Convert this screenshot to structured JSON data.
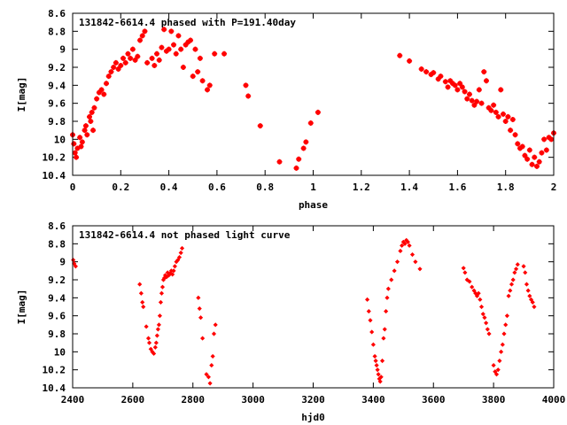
{
  "chart_data": [
    {
      "type": "scatter",
      "title": "131842-6614.4 phased with P=191.40day",
      "xlabel": "phase",
      "ylabel": "I[mag]",
      "xlim": [
        0,
        2
      ],
      "ylim": [
        10.4,
        8.6
      ],
      "y_inverted": true,
      "xticks": [
        "0",
        "0.2",
        "0.4",
        "0.6",
        "0.8",
        "1",
        "1.2",
        "1.4",
        "1.6",
        "1.8",
        "2"
      ],
      "yticks": [
        "8.6",
        "8.8",
        "9",
        "9.2",
        "9.4",
        "9.6",
        "9.8",
        "10",
        "10.2",
        "10.4"
      ],
      "marker": "plus",
      "series_color": "#ff0000",
      "points": [
        [
          0.0,
          9.95
        ],
        [
          0.005,
          10.05
        ],
        [
          0.01,
          10.15
        ],
        [
          0.015,
          10.2
        ],
        [
          0.02,
          10.1
        ],
        [
          0.03,
          9.98
        ],
        [
          0.035,
          10.08
        ],
        [
          0.04,
          10.03
        ],
        [
          0.05,
          9.9
        ],
        [
          0.055,
          9.85
        ],
        [
          0.06,
          9.95
        ],
        [
          0.07,
          9.75
        ],
        [
          0.075,
          9.8
        ],
        [
          0.08,
          9.7
        ],
        [
          0.085,
          9.9
        ],
        [
          0.09,
          9.65
        ],
        [
          0.1,
          9.55
        ],
        [
          0.11,
          9.48
        ],
        [
          0.12,
          9.45
        ],
        [
          0.13,
          9.5
        ],
        [
          0.14,
          9.38
        ],
        [
          0.15,
          9.3
        ],
        [
          0.16,
          9.25
        ],
        [
          0.17,
          9.2
        ],
        [
          0.18,
          9.15
        ],
        [
          0.19,
          9.22
        ],
        [
          0.2,
          9.18
        ],
        [
          0.21,
          9.1
        ],
        [
          0.22,
          9.15
        ],
        [
          0.23,
          9.05
        ],
        [
          0.24,
          9.1
        ],
        [
          0.25,
          9.0
        ],
        [
          0.26,
          9.12
        ],
        [
          0.27,
          9.08
        ],
        [
          0.28,
          8.9
        ],
        [
          0.29,
          8.85
        ],
        [
          0.3,
          8.8
        ],
        [
          0.31,
          9.15
        ],
        [
          0.33,
          9.1
        ],
        [
          0.34,
          9.18
        ],
        [
          0.35,
          9.05
        ],
        [
          0.36,
          9.12
        ],
        [
          0.37,
          8.98
        ],
        [
          0.38,
          8.78
        ],
        [
          0.39,
          9.02
        ],
        [
          0.4,
          9.0
        ],
        [
          0.41,
          8.8
        ],
        [
          0.42,
          8.95
        ],
        [
          0.43,
          9.05
        ],
        [
          0.44,
          8.85
        ],
        [
          0.45,
          9.0
        ],
        [
          0.46,
          9.2
        ],
        [
          0.47,
          8.95
        ],
        [
          0.48,
          8.92
        ],
        [
          0.49,
          8.9
        ],
        [
          0.5,
          9.3
        ],
        [
          0.51,
          9.0
        ],
        [
          0.52,
          9.25
        ],
        [
          0.53,
          9.1
        ],
        [
          0.54,
          9.35
        ],
        [
          0.56,
          9.45
        ],
        [
          0.57,
          9.4
        ],
        [
          0.59,
          9.05
        ],
        [
          0.63,
          9.05
        ],
        [
          0.72,
          9.4
        ],
        [
          0.73,
          9.52
        ],
        [
          0.78,
          9.85
        ],
        [
          0.86,
          10.25
        ],
        [
          0.93,
          10.32
        ],
        [
          0.94,
          10.22
        ],
        [
          0.96,
          10.1
        ],
        [
          0.97,
          10.03
        ],
        [
          0.99,
          9.82
        ],
        [
          1.02,
          9.7
        ],
        [
          1.36,
          9.07
        ],
        [
          1.4,
          9.13
        ],
        [
          1.45,
          9.22
        ],
        [
          1.47,
          9.25
        ],
        [
          1.49,
          9.28
        ],
        [
          1.5,
          9.26
        ],
        [
          1.52,
          9.33
        ],
        [
          1.53,
          9.3
        ],
        [
          1.55,
          9.36
        ],
        [
          1.56,
          9.42
        ],
        [
          1.57,
          9.35
        ],
        [
          1.58,
          9.38
        ],
        [
          1.59,
          9.4
        ],
        [
          1.6,
          9.45
        ],
        [
          1.61,
          9.38
        ],
        [
          1.62,
          9.42
        ],
        [
          1.63,
          9.47
        ],
        [
          1.64,
          9.55
        ],
        [
          1.65,
          9.5
        ],
        [
          1.66,
          9.57
        ],
        [
          1.67,
          9.62
        ],
        [
          1.68,
          9.58
        ],
        [
          1.69,
          9.45
        ],
        [
          1.7,
          9.6
        ],
        [
          1.71,
          9.25
        ],
        [
          1.72,
          9.35
        ],
        [
          1.73,
          9.65
        ],
        [
          1.74,
          9.68
        ],
        [
          1.75,
          9.62
        ],
        [
          1.76,
          9.7
        ],
        [
          1.77,
          9.75
        ],
        [
          1.78,
          9.45
        ],
        [
          1.79,
          9.72
        ],
        [
          1.8,
          9.8
        ],
        [
          1.81,
          9.75
        ],
        [
          1.82,
          9.9
        ],
        [
          1.83,
          9.78
        ],
        [
          1.84,
          9.95
        ],
        [
          1.85,
          10.05
        ],
        [
          1.86,
          10.1
        ],
        [
          1.87,
          10.08
        ],
        [
          1.88,
          10.18
        ],
        [
          1.89,
          10.22
        ],
        [
          1.9,
          10.12
        ],
        [
          1.91,
          10.28
        ],
        [
          1.92,
          10.2
        ],
        [
          1.93,
          10.3
        ],
        [
          1.94,
          10.25
        ],
        [
          1.95,
          10.15
        ],
        [
          1.96,
          10.0
        ],
        [
          1.97,
          10.12
        ],
        [
          1.98,
          9.98
        ],
        [
          1.99,
          10.0
        ],
        [
          2.0,
          9.93
        ]
      ]
    },
    {
      "type": "scatter",
      "title": "131842-6614.4 not phased light curve",
      "xlabel": "hjd0",
      "ylabel": "I[mag]",
      "xlim": [
        2400,
        4000
      ],
      "ylim": [
        10.4,
        8.6
      ],
      "y_inverted": true,
      "xticks": [
        "2400",
        "2600",
        "2800",
        "3000",
        "3200",
        "3400",
        "3600",
        "3800",
        "4000"
      ],
      "yticks": [
        "8.6",
        "8.8",
        "9",
        "9.2",
        "9.4",
        "9.6",
        "9.8",
        "10",
        "10.2",
        "10.4"
      ],
      "marker": "diamond",
      "series_color": "#ff0000",
      "points": [
        [
          2402,
          8.98
        ],
        [
          2405,
          9.02
        ],
        [
          2410,
          9.05
        ],
        [
          2623,
          9.25
        ],
        [
          2628,
          9.35
        ],
        [
          2632,
          9.45
        ],
        [
          2635,
          9.5
        ],
        [
          2645,
          9.72
        ],
        [
          2652,
          9.85
        ],
        [
          2655,
          9.9
        ],
        [
          2660,
          9.97
        ],
        [
          2665,
          10.0
        ],
        [
          2670,
          10.02
        ],
        [
          2675,
          9.95
        ],
        [
          2678,
          9.9
        ],
        [
          2681,
          9.82
        ],
        [
          2684,
          9.75
        ],
        [
          2687,
          9.7
        ],
        [
          2690,
          9.6
        ],
        [
          2693,
          9.45
        ],
        [
          2696,
          9.35
        ],
        [
          2699,
          9.28
        ],
        [
          2702,
          9.2
        ],
        [
          2705,
          9.18
        ],
        [
          2708,
          9.15
        ],
        [
          2712,
          9.17
        ],
        [
          2716,
          9.12
        ],
        [
          2720,
          9.15
        ],
        [
          2724,
          9.13
        ],
        [
          2728,
          9.1
        ],
        [
          2732,
          9.14
        ],
        [
          2736,
          9.1
        ],
        [
          2740,
          9.05
        ],
        [
          2745,
          9.0
        ],
        [
          2750,
          8.98
        ],
        [
          2755,
          8.95
        ],
        [
          2760,
          8.9
        ],
        [
          2764,
          8.85
        ],
        [
          2818,
          9.4
        ],
        [
          2822,
          9.52
        ],
        [
          2826,
          9.62
        ],
        [
          2832,
          9.85
        ],
        [
          2845,
          10.25
        ],
        [
          2852,
          10.28
        ],
        [
          2857,
          10.35
        ],
        [
          2862,
          10.15
        ],
        [
          2866,
          10.05
        ],
        [
          2870,
          9.8
        ],
        [
          2875,
          9.7
        ],
        [
          3380,
          9.42
        ],
        [
          3385,
          9.55
        ],
        [
          3390,
          9.65
        ],
        [
          3395,
          9.78
        ],
        [
          3400,
          9.92
        ],
        [
          3405,
          10.05
        ],
        [
          3408,
          10.1
        ],
        [
          3411,
          10.15
        ],
        [
          3414,
          10.2
        ],
        [
          3417,
          10.25
        ],
        [
          3420,
          10.3
        ],
        [
          3423,
          10.33
        ],
        [
          3426,
          10.28
        ],
        [
          3430,
          10.1
        ],
        [
          3434,
          9.85
        ],
        [
          3438,
          9.75
        ],
        [
          3442,
          9.55
        ],
        [
          3446,
          9.4
        ],
        [
          3450,
          9.3
        ],
        [
          3460,
          9.2
        ],
        [
          3470,
          9.1
        ],
        [
          3480,
          9.0
        ],
        [
          3490,
          8.88
        ],
        [
          3495,
          8.82
        ],
        [
          3500,
          8.78
        ],
        [
          3505,
          8.8
        ],
        [
          3510,
          8.76
        ],
        [
          3515,
          8.78
        ],
        [
          3520,
          8.82
        ],
        [
          3530,
          8.92
        ],
        [
          3540,
          9.0
        ],
        [
          3555,
          9.08
        ],
        [
          3700,
          9.07
        ],
        [
          3705,
          9.12
        ],
        [
          3712,
          9.2
        ],
        [
          3720,
          9.22
        ],
        [
          3728,
          9.28
        ],
        [
          3735,
          9.32
        ],
        [
          3740,
          9.35
        ],
        [
          3745,
          9.38
        ],
        [
          3750,
          9.35
        ],
        [
          3755,
          9.42
        ],
        [
          3760,
          9.5
        ],
        [
          3765,
          9.58
        ],
        [
          3770,
          9.62
        ],
        [
          3775,
          9.68
        ],
        [
          3780,
          9.75
        ],
        [
          3785,
          9.8
        ],
        [
          3800,
          10.15
        ],
        [
          3805,
          10.22
        ],
        [
          3810,
          10.25
        ],
        [
          3815,
          10.2
        ],
        [
          3820,
          10.1
        ],
        [
          3825,
          10.0
        ],
        [
          3830,
          9.92
        ],
        [
          3835,
          9.8
        ],
        [
          3840,
          9.7
        ],
        [
          3845,
          9.6
        ],
        [
          3850,
          9.38
        ],
        [
          3855,
          9.32
        ],
        [
          3860,
          9.25
        ],
        [
          3865,
          9.2
        ],
        [
          3870,
          9.12
        ],
        [
          3875,
          9.08
        ],
        [
          3880,
          9.03
        ],
        [
          3900,
          9.05
        ],
        [
          3905,
          9.12
        ],
        [
          3910,
          9.25
        ],
        [
          3915,
          9.32
        ],
        [
          3920,
          9.38
        ],
        [
          3925,
          9.42
        ],
        [
          3930,
          9.45
        ],
        [
          3935,
          9.5
        ]
      ]
    }
  ]
}
